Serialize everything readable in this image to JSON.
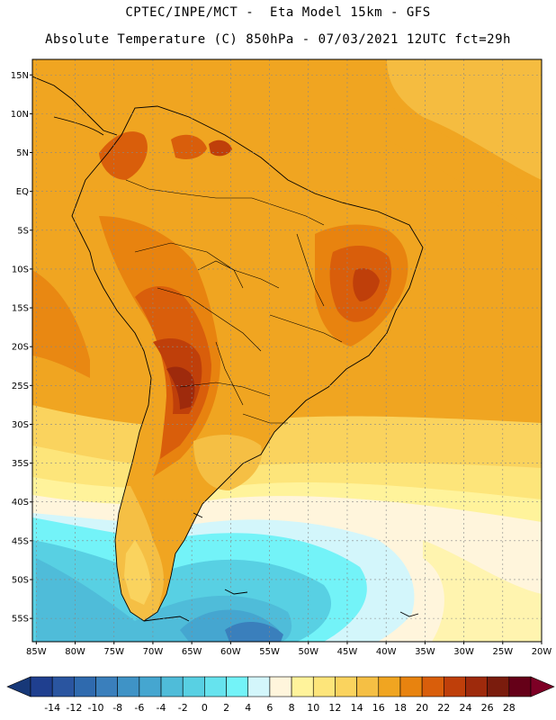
{
  "header": {
    "line1": "CPTEC/INPE/MCT -  Eta Model 15km - GFS",
    "line2": "Absolute Temperature (C) 850hPa - 07/03/2021 12UTC fct=29h"
  },
  "map": {
    "lat_labels": [
      "15N",
      "10N",
      "5N",
      "EQ",
      "5S",
      "10S",
      "15S",
      "20S",
      "25S",
      "30S",
      "35S",
      "40S",
      "45S",
      "50S",
      "55S"
    ],
    "lat_values": [
      15,
      10,
      5,
      0,
      -5,
      -10,
      -15,
      -20,
      -25,
      -30,
      -35,
      -40,
      -45,
      -50,
      -55
    ],
    "lon_labels": [
      "85W",
      "80W",
      "75W",
      "70W",
      "65W",
      "60W",
      "55W",
      "50W",
      "45W",
      "40W",
      "35W",
      "30W",
      "25W",
      "20W"
    ],
    "lon_values": [
      -85,
      -80,
      -75,
      -70,
      -65,
      -60,
      -55,
      -50,
      -45,
      -40,
      -35,
      -30,
      -25,
      -20
    ],
    "extent": {
      "lon_min": -85.5,
      "lon_max": -20,
      "lat_min": -58,
      "lat_max": 17
    },
    "grid": true
  },
  "colorbar": {
    "labels": [
      "-14",
      "-12",
      "-10",
      "-8",
      "-6",
      "-4",
      "-2",
      "0",
      "2",
      "4",
      "6",
      "8",
      "10",
      "12",
      "14",
      "16",
      "18",
      "20",
      "22",
      "24",
      "26",
      "28"
    ],
    "colors": [
      "#1f3f8f",
      "#2a55a0",
      "#2f6aae",
      "#3a7fbc",
      "#3f93c6",
      "#45a6d0",
      "#4fbcd9",
      "#58d0e3",
      "#66e3ee",
      "#73f3f8",
      "#d3f6fb",
      "#fff5dc",
      "#fff39b",
      "#fde57a",
      "#fad35e",
      "#f5bf44",
      "#f0a521",
      "#e8830f",
      "#d95e0b",
      "#bf3f0a",
      "#9e2a0c",
      "#7a1c0d",
      "#650018"
    ],
    "under_color": "#173878",
    "over_color": "#7d0025"
  }
}
